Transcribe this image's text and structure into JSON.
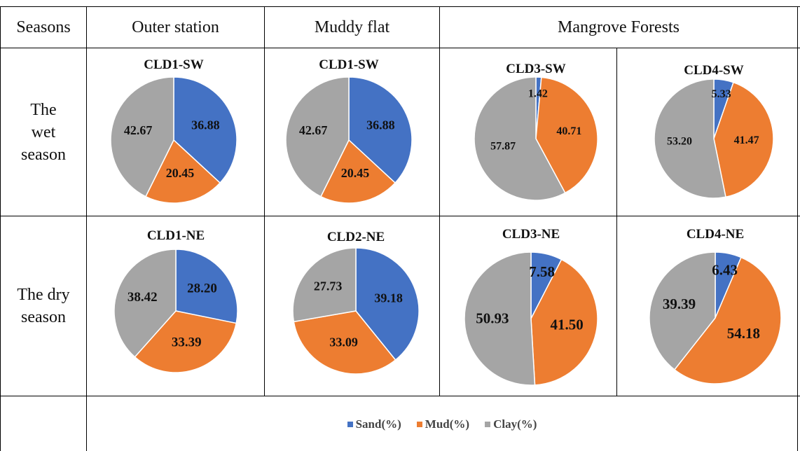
{
  "headers": {
    "seasons": "Seasons",
    "outer": "Outer station",
    "muddy": "Muddy flat",
    "mangrove": "Mangrove Forests"
  },
  "rows": {
    "wet": [
      "The",
      "wet",
      "season"
    ],
    "dry": [
      "The dry",
      "season"
    ]
  },
  "colors": {
    "sand": "#4472C4",
    "mud": "#ED7D31",
    "clay": "#A5A5A5"
  },
  "chart_data": [
    {
      "type": "pie",
      "title": "CLD1-SW",
      "categories": [
        "Sand(%)",
        "Mud(%)",
        "Clay(%)"
      ],
      "values": [
        36.88,
        20.45,
        42.67
      ],
      "labels": [
        "36.88",
        "20.45",
        "42.67"
      ]
    },
    {
      "type": "pie",
      "title": "CLD1-SW",
      "categories": [
        "Sand(%)",
        "Mud(%)",
        "Clay(%)"
      ],
      "values": [
        36.88,
        20.45,
        42.67
      ],
      "labels": [
        "36.88",
        "20.45",
        "42.67"
      ]
    },
    {
      "type": "pie",
      "title": "CLD3-SW",
      "categories": [
        "Sand(%)",
        "Mud(%)",
        "Clay(%)"
      ],
      "values": [
        1.42,
        40.71,
        57.87
      ],
      "labels": [
        "1.42",
        "40.71",
        "57.87"
      ]
    },
    {
      "type": "pie",
      "title": "CLD4-SW",
      "categories": [
        "Sand(%)",
        "Mud(%)",
        "Clay(%)"
      ],
      "values": [
        5.33,
        41.47,
        53.2
      ],
      "labels": [
        "5.33",
        "41.47",
        "53.20"
      ]
    },
    {
      "type": "pie",
      "title": "CLD1-NE",
      "categories": [
        "Sand(%)",
        "Mud(%)",
        "Clay(%)"
      ],
      "values": [
        28.2,
        33.39,
        38.42
      ],
      "labels": [
        "28.20",
        "33.39",
        "38.42"
      ]
    },
    {
      "type": "pie",
      "title": "CLD2-NE",
      "categories": [
        "Sand(%)",
        "Mud(%)",
        "Clay(%)"
      ],
      "values": [
        39.18,
        33.09,
        27.73
      ],
      "labels": [
        "39.18",
        "33.09",
        "27.73"
      ]
    },
    {
      "type": "pie",
      "title": "CLD3-NE",
      "categories": [
        "Sand(%)",
        "Mud(%)",
        "Clay(%)"
      ],
      "values": [
        7.58,
        41.5,
        50.93
      ],
      "labels": [
        "7.58",
        "41.50",
        "50.93"
      ]
    },
    {
      "type": "pie",
      "title": "CLD4-NE",
      "categories": [
        "Sand(%)",
        "Mud(%)",
        "Clay(%)"
      ],
      "values": [
        6.43,
        54.18,
        39.39
      ],
      "labels": [
        "6.43",
        "54.18",
        "39.39"
      ]
    }
  ],
  "legend": [
    "Sand(%)",
    "Mud(%)",
    "Clay(%)"
  ]
}
